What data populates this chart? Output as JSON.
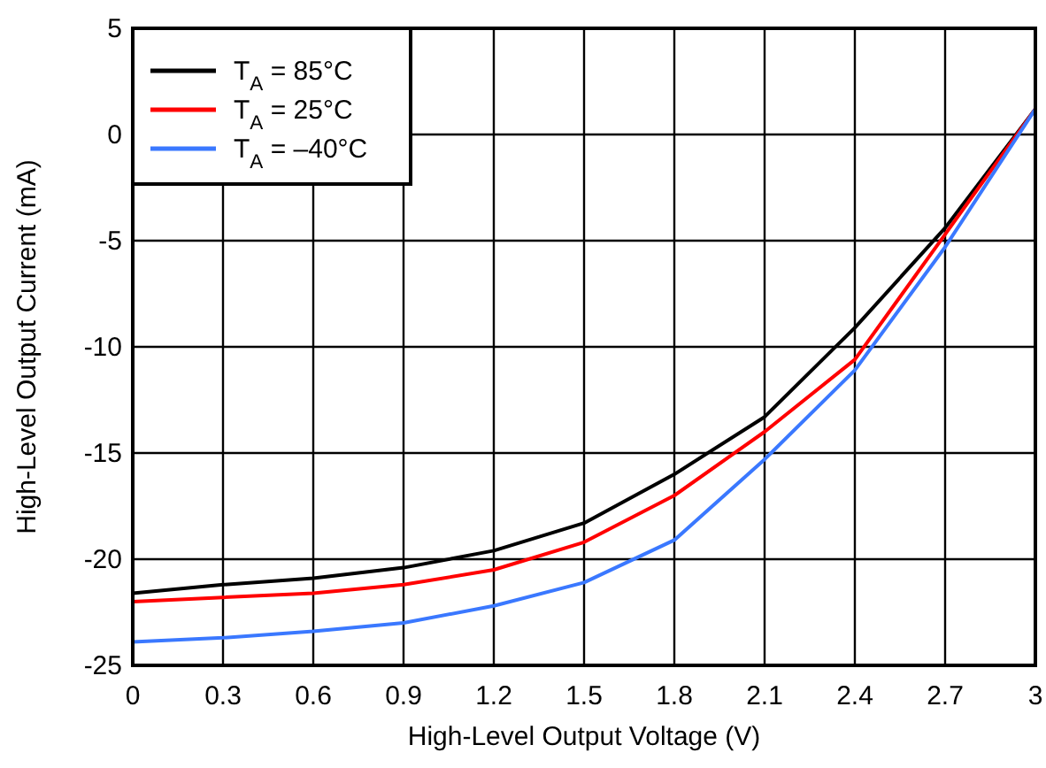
{
  "chart_data": {
    "type": "line",
    "xlabel": "High-Level Output Voltage (V)",
    "ylabel": "High-Level Output Current (mA)",
    "x": [
      0,
      0.3,
      0.6,
      0.9,
      1.2,
      1.5,
      1.8,
      2.1,
      2.4,
      2.7,
      3
    ],
    "series": [
      {
        "name": "T$_{A}$ = 85°C",
        "color": "#000000",
        "values": [
          -21.6,
          -21.2,
          -20.9,
          -20.4,
          -19.6,
          -18.3,
          -16.0,
          -13.3,
          -9.1,
          -4.4,
          1.2
        ]
      },
      {
        "name": "T$_{A}$ = 25°C",
        "color": "#ff0000",
        "values": [
          -22.0,
          -21.8,
          -21.6,
          -21.2,
          -20.5,
          -19.2,
          -17.0,
          -14.0,
          -10.6,
          -4.7,
          1.2
        ]
      },
      {
        "name": "T$_{A}$ = –40°C",
        "color": "#3a78ff",
        "values": [
          -23.9,
          -23.7,
          -23.4,
          -23.0,
          -22.2,
          -21.1,
          -19.1,
          -15.3,
          -11.1,
          -5.3,
          1.2
        ]
      }
    ],
    "xlim": [
      0,
      3
    ],
    "xticks": [
      0,
      0.3,
      0.6,
      0.9,
      1.2,
      1.5,
      1.8,
      2.1,
      2.4,
      2.7,
      3
    ],
    "ylim": [
      -25,
      5
    ],
    "yticks": [
      -25,
      -20,
      -15,
      -10,
      -5,
      0,
      5
    ],
    "grid": true,
    "legend": "top left",
    "marker": "none",
    "line_style": "solid"
  }
}
